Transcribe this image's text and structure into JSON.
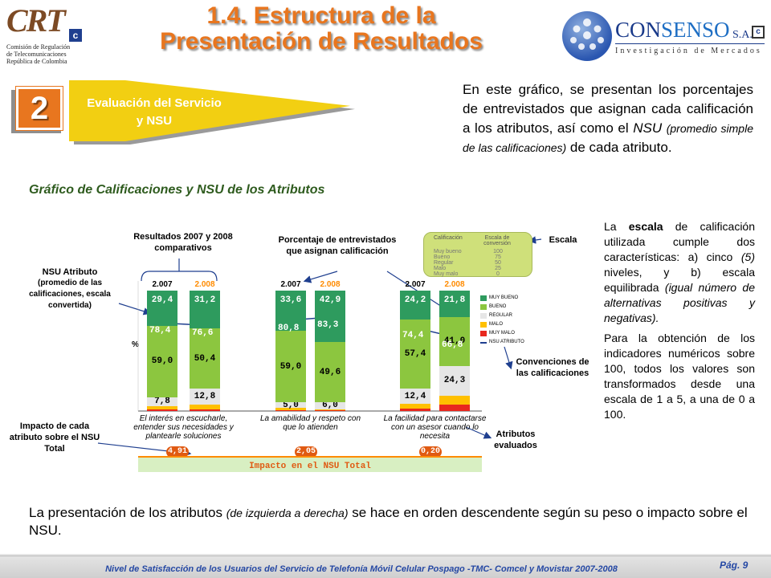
{
  "header": {
    "title_line1": "1.4. Estructura de la",
    "title_line2": "Presentación de Resultados",
    "crt_logo": {
      "mark": "CRT",
      "badge": "c",
      "sub1": "Comisión de Regulación",
      "sub2": "de Telecomunicaciones",
      "sub3": "República de Colombia"
    },
    "consenso_logo": {
      "name_a": "CON",
      "name_b": "SENSO",
      "sa": "S.A.",
      "badge": "c",
      "tagline": "Investigación de Mercados"
    }
  },
  "section": {
    "number": "2",
    "label_line1": "Evaluación del Servicio",
    "label_line2": "y NSU"
  },
  "intro": {
    "part1": "En este gráfico, se presentan los porcentajes de entrevistados que asignan cada calificación a los atributos, así como el ",
    "nsu": "NSU",
    "paren": "(promedio simple de las calificaciones)",
    "part2": " de cada atributo."
  },
  "chart_heading": "Gráfico de Calificaciones y NSU de los Atributos",
  "scale_text": {
    "p1_a": "La ",
    "p1_b": "escala",
    "p1_c": " de calificación utilizada cumple dos características: a) cinco ",
    "p1_d": "(5)",
    "p1_e": " niveles, y b) escala equilibrada ",
    "p1_f": "(igual número de alternativas positivas y negativas).",
    "p2": "Para la obtención de los indicadores numéricos sobre 100, todos los valores son transformados desde una escala de 1 a 5, a una de 0 a 100."
  },
  "callouts": {
    "resultados": "Resultados 2007 y 2008 comparativos",
    "porcentaje": "Porcentaje de entrevistados que asignan calificación",
    "escala": "Escala",
    "nsu_title": "NSU Atributo",
    "nsu_sub": "(promedio de las calificaciones, escala convertida)",
    "convenciones": "Convenciones de las calificaciones",
    "impacto": "Impacto de cada atributo sobre el NSU Total",
    "atributos": "Atributos evaluados"
  },
  "scale_table": {
    "col1": "Calificación",
    "col2": "Escala de conversión",
    "rows": [
      {
        "label": "Muy bueno",
        "value": "100"
      },
      {
        "label": "Bueno",
        "value": "75"
      },
      {
        "label": "Regular",
        "value": "50"
      },
      {
        "label": "Malo",
        "value": "25"
      },
      {
        "label": "Muy malo",
        "value": "0"
      }
    ]
  },
  "legend": [
    {
      "label": "MUY BUENO",
      "color": "#2e9b5e"
    },
    {
      "label": "BUENO",
      "color": "#8cc63f"
    },
    {
      "label": "REGULAR",
      "color": "#e6e6e6"
    },
    {
      "label": "MALO",
      "color": "#ffc000"
    },
    {
      "label": "MUY MALO",
      "color": "#e8281e"
    },
    {
      "label": "NSU ATRIBUTO",
      "color": "#1f3f8f"
    }
  ],
  "chart_unit": "%",
  "impact_title": "Impacto en el NSU Total",
  "chart_data": {
    "type": "bar",
    "stacked": true,
    "years": [
      "2.007",
      "2.008"
    ],
    "ylim": [
      0,
      100
    ],
    "groups": [
      {
        "attribute": "El interés en escucharle, entender sus necesidades y plantearle soluciones",
        "impact": "4,91",
        "bars": [
          {
            "year": "2.007",
            "muy_bueno": 29.4,
            "bueno": 59.0,
            "regular": 7.8,
            "malo": 2.6,
            "muy_malo": 1.2,
            "nsu": 78.4,
            "labels": {
              "muy_bueno": "29,4",
              "bueno": "59,0",
              "regular": "7,8",
              "nsu": "78,4"
            }
          },
          {
            "year": "2.008",
            "muy_bueno": 31.2,
            "bueno": 50.4,
            "regular": 12.8,
            "malo": 4.2,
            "muy_malo": 1.4,
            "nsu": 76.6,
            "labels": {
              "muy_bueno": "31,2",
              "bueno": "50,4",
              "regular": "12,8",
              "nsu": "76,6"
            }
          }
        ]
      },
      {
        "attribute": "La amabilidad y respeto con que lo atienden",
        "impact": "2,05",
        "bars": [
          {
            "year": "2.007",
            "muy_bueno": 33.6,
            "bueno": 59.0,
            "regular": 5.0,
            "malo": 1.6,
            "muy_malo": 0.8,
            "nsu": 80.8,
            "labels": {
              "muy_bueno": "33,6",
              "bueno": "59,0",
              "regular": "5,0",
              "nsu": "80,8"
            }
          },
          {
            "year": "2.008",
            "muy_bueno": 42.9,
            "bueno": 49.6,
            "regular": 6.0,
            "malo": 1.0,
            "muy_malo": 0.5,
            "nsu": 83.3,
            "labels": {
              "muy_bueno": "42,9",
              "bueno": "49,6",
              "regular": "6,0",
              "nsu": "83,3"
            }
          }
        ]
      },
      {
        "attribute": "La facilidad para contactarse con un asesor cuando lo necesita",
        "impact": "0,20",
        "bars": [
          {
            "year": "2.007",
            "muy_bueno": 24.2,
            "bueno": 57.4,
            "regular": 12.4,
            "malo": 3.9,
            "muy_malo": 2.1,
            "nsu": 74.4,
            "labels": {
              "muy_bueno": "24,2",
              "bueno": "57,4",
              "regular": "12,4",
              "nsu": "74,4"
            }
          },
          {
            "year": "2.008",
            "muy_bueno": 21.8,
            "bueno": 41.0,
            "regular": 24.3,
            "malo": 7.4,
            "muy_malo": 5.5,
            "nsu": 66.8,
            "labels": {
              "muy_bueno": "21,8",
              "bueno": "41,0",
              "regular": "24,3",
              "nsu": "66,8"
            }
          }
        ]
      }
    ]
  },
  "bottom_note": {
    "part1": "La presentación de los atributos ",
    "paren": "(de izquierda a derecha)",
    "part2": " se hace en orden descendente según su peso o impacto sobre el NSU."
  },
  "footer": {
    "text": "Nivel de Satisfacción de los Usuarios del Servicio de Telefonía Móvil Celular Pospago -TMC- Comcel y Movistar 2007-2008",
    "page": "Pág. 9"
  }
}
